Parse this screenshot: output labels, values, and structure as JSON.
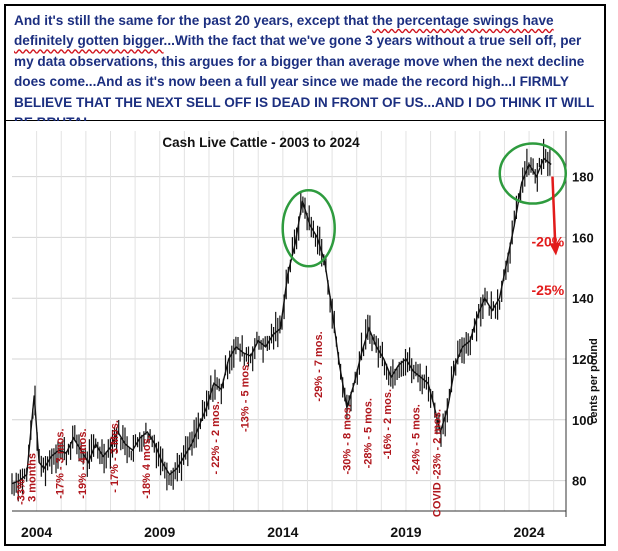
{
  "header": {
    "line_parts": [
      "And it's still the same for the past 20 years, except that ",
      "the percentage swings have definitely gotten bigger",
      "...With the fact that we've gone 3 years without a true sell off, per my data observations, this argues for a bigger than average move when the next decline does come...And as it's now been a full year since we made the record high...I FIRMLY BELIEVE THAT THE NEXT SELL OFF IS DEAD IN FRONT OF US...AND I DO THINK IT WILL BE BRUTAL."
    ],
    "text_color": "#1c2f80",
    "highlight_color": "#d0141e"
  },
  "chart_data": {
    "type": "line",
    "title": "Cash Live Cattle - 2003 to 2024",
    "ylabel": "cents per pound",
    "xlabel": "",
    "xlim": [
      2003.0,
      2025.5
    ],
    "ylim": [
      70,
      195
    ],
    "yticks": [
      80,
      100,
      120,
      140,
      160,
      180
    ],
    "xtick_labels": [
      "2004",
      "2009",
      "2014",
      "2019",
      "2024"
    ],
    "xtick_values": [
      2004,
      2009,
      2014,
      2019,
      2024
    ],
    "grid": true,
    "series": [
      {
        "x": [
          2003.0,
          2003.3,
          2003.6,
          2003.9,
          2004.1,
          2004.3,
          2004.6,
          2004.9,
          2005.2,
          2005.5,
          2005.8,
          2006.1,
          2006.4,
          2006.7,
          2007.0,
          2007.3,
          2007.6,
          2007.9,
          2008.2,
          2008.5,
          2008.8,
          2009.1,
          2009.4,
          2009.7,
          2010.0,
          2010.3,
          2010.6,
          2010.9,
          2011.2,
          2011.5,
          2011.8,
          2012.1,
          2012.4,
          2012.7,
          2013.0,
          2013.3,
          2013.6,
          2013.9,
          2014.2,
          2014.5,
          2014.8,
          2015.1,
          2015.4,
          2015.7,
          2016.0,
          2016.3,
          2016.6,
          2016.9,
          2017.2,
          2017.5,
          2017.8,
          2018.1,
          2018.4,
          2018.7,
          2019.0,
          2019.3,
          2019.6,
          2019.9,
          2020.1,
          2020.4,
          2020.7,
          2021.0,
          2021.3,
          2021.6,
          2021.9,
          2022.2,
          2022.5,
          2022.8,
          2023.1,
          2023.4,
          2023.7,
          2024.0,
          2024.3,
          2024.6,
          2024.9
        ],
        "values": [
          79,
          80,
          82,
          108,
          86,
          84,
          88,
          90,
          89,
          94,
          90,
          86,
          92,
          88,
          91,
          96,
          92,
          90,
          94,
          96,
          92,
          86,
          82,
          84,
          88,
          92,
          98,
          104,
          112,
          110,
          120,
          124,
          122,
          121,
          126,
          124,
          128,
          130,
          148,
          158,
          172,
          164,
          160,
          152,
          136,
          118,
          104,
          112,
          122,
          130,
          124,
          120,
          114,
          118,
          120,
          116,
          114,
          112,
          106,
          96,
          104,
          118,
          124,
          126,
          134,
          140,
          136,
          140,
          152,
          164,
          178,
          184,
          180,
          186,
          184
        ]
      }
    ],
    "drop_labels": [
      {
        "text": "-33%",
        "x": 2003.5,
        "y": 72
      },
      {
        "text": "3 months",
        "x": 2003.95,
        "y": 73
      },
      {
        "text": "-17% - 3 mos.",
        "x": 2005.1,
        "y": 74
      },
      {
        "text": "-19% - 4 mos.",
        "x": 2006.0,
        "y": 74
      },
      {
        "text": "- 17% - 3 Mos.",
        "x": 2007.3,
        "y": 76
      },
      {
        "text": "-18% 4 mos.",
        "x": 2008.6,
        "y": 74
      },
      {
        "text": "- 22% - 2 mos.",
        "x": 2011.4,
        "y": 82
      },
      {
        "text": "-13% - 5 mos.",
        "x": 2012.6,
        "y": 96
      },
      {
        "text": "-29% - 7 mos.",
        "x": 2015.6,
        "y": 106
      },
      {
        "text": "-30% - 8 mos.",
        "x": 2016.75,
        "y": 82
      },
      {
        "text": "-28% - 5 mos.",
        "x": 2017.6,
        "y": 84
      },
      {
        "text": "-16% - 2 mos.",
        "x": 2018.4,
        "y": 87
      },
      {
        "text": "-24% - 5 mos.",
        "x": 2019.55,
        "y": 82
      },
      {
        "text": "COVID -23% - 2 mos.",
        "x": 2020.4,
        "y": 68
      }
    ],
    "projection_labels": [
      {
        "text": "-20%",
        "x": 2024.1,
        "y": 157
      },
      {
        "text": "-25%",
        "x": 2024.1,
        "y": 141
      }
    ],
    "circle_color": "#2e9b3e",
    "arrow_color": "#e21b1b",
    "label_color": "#b0161c"
  }
}
